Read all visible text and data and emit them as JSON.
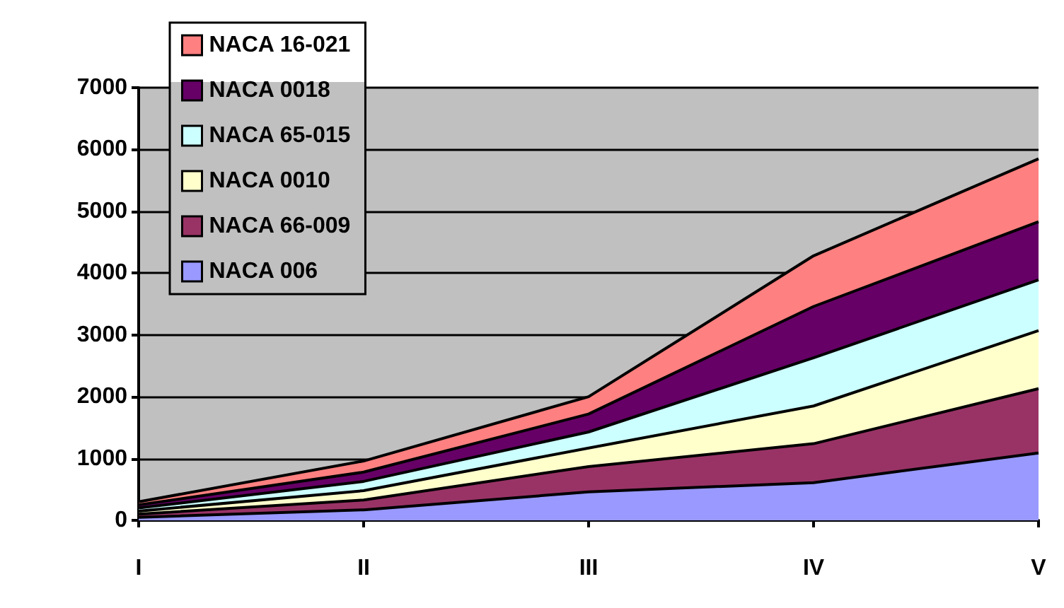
{
  "chart_data": {
    "type": "area",
    "stacked": true,
    "categories": [
      "I",
      "II",
      "III",
      "IV",
      "V"
    ],
    "series": [
      {
        "name": "NACA 006",
        "color": "#9999ff",
        "values": [
          50,
          170,
          460,
          610,
          1090
        ]
      },
      {
        "name": "NACA 66-009",
        "color": "#993366",
        "values": [
          50,
          160,
          410,
          630,
          1040
        ]
      },
      {
        "name": "NACA 0010",
        "color": "#ffffcc",
        "values": [
          50,
          150,
          300,
          610,
          940
        ]
      },
      {
        "name": "NACA 65-015",
        "color": "#ccffff",
        "values": [
          50,
          150,
          260,
          780,
          820
        ]
      },
      {
        "name": "NACA 0018",
        "color": "#660066",
        "values": [
          50,
          150,
          290,
          830,
          940
        ]
      },
      {
        "name": "NACA 16-021",
        "color": "#ff8080",
        "values": [
          50,
          180,
          280,
          820,
          1020
        ]
      }
    ],
    "ylim": [
      0,
      7000
    ],
    "yticks": [
      0,
      1000,
      2000,
      3000,
      4000,
      5000,
      6000,
      7000
    ],
    "grid": "y",
    "legend": "top left"
  }
}
